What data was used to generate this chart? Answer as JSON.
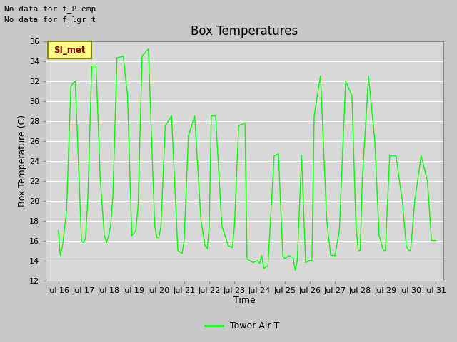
{
  "title": "Box Temperatures",
  "xlabel": "Time",
  "ylabel": "Box Temperature (C)",
  "ylim": [
    12,
    36
  ],
  "yticks": [
    12,
    14,
    16,
    18,
    20,
    22,
    24,
    26,
    28,
    30,
    32,
    34,
    36
  ],
  "line_color": "#00ff00",
  "legend_label": "Tower Air T",
  "annotation_texts": [
    "No data for f_PTemp",
    "No data for f_lgr_t"
  ],
  "si_met_label": "SI_met",
  "x_tick_labels": [
    "Jul 16",
    "Jul 17",
    "Jul 18",
    "Jul 19",
    "Jul 20",
    "Jul 21",
    "Jul 22",
    "Jul 23",
    "Jul 24",
    "Jul 25",
    "Jul 26",
    "Jul 27",
    "Jul 28",
    "Jul 29",
    "Jul 30",
    "Jul 31"
  ],
  "x_values": [
    16.0,
    16.08,
    16.17,
    16.33,
    16.5,
    16.67,
    16.83,
    16.92,
    17.0,
    17.08,
    17.17,
    17.33,
    17.5,
    17.67,
    17.83,
    17.92,
    18.0,
    18.08,
    18.17,
    18.33,
    18.58,
    18.75,
    18.92,
    19.0,
    19.08,
    19.17,
    19.33,
    19.58,
    19.83,
    19.92,
    20.0,
    20.08,
    20.25,
    20.5,
    20.75,
    20.92,
    21.0,
    21.17,
    21.42,
    21.67,
    21.83,
    21.92,
    22.0,
    22.08,
    22.25,
    22.5,
    22.75,
    22.92,
    23.0,
    23.17,
    23.42,
    23.5,
    23.58,
    23.75,
    23.92,
    24.0,
    24.08,
    24.17,
    24.33,
    24.58,
    24.75,
    24.92,
    25.0,
    25.17,
    25.33,
    25.42,
    25.5,
    25.67,
    25.83,
    26.0,
    26.08,
    26.17,
    26.42,
    26.67,
    26.83,
    27.0,
    27.17,
    27.42,
    27.67,
    27.83,
    27.92,
    28.0,
    28.08,
    28.33,
    28.58,
    28.75,
    28.92,
    29.0,
    29.17,
    29.42,
    29.67,
    29.83,
    29.92,
    30.0,
    30.17,
    30.42,
    30.67,
    30.83,
    30.92,
    31.0
  ],
  "y_values": [
    17.0,
    14.5,
    15.5,
    19.0,
    31.5,
    32.0,
    22.0,
    16.0,
    15.8,
    16.2,
    20.0,
    33.5,
    33.5,
    22.0,
    16.5,
    15.8,
    16.5,
    17.5,
    20.5,
    34.3,
    34.5,
    30.5,
    16.5,
    16.7,
    17.0,
    19.5,
    34.5,
    35.2,
    17.5,
    16.3,
    16.3,
    17.5,
    27.5,
    28.5,
    15.0,
    14.7,
    16.0,
    26.5,
    28.5,
    18.0,
    15.5,
    15.2,
    17.5,
    28.5,
    28.5,
    17.5,
    15.5,
    15.3,
    17.5,
    27.5,
    27.8,
    14.2,
    14.0,
    13.8,
    14.0,
    13.7,
    14.5,
    13.2,
    13.5,
    24.5,
    24.7,
    14.5,
    14.2,
    14.5,
    14.3,
    13.0,
    14.0,
    24.5,
    13.8,
    14.0,
    14.0,
    28.5,
    32.5,
    18.0,
    14.5,
    14.5,
    17.0,
    32.0,
    30.5,
    17.5,
    15.0,
    15.0,
    22.0,
    32.5,
    26.0,
    16.5,
    15.0,
    15.0,
    24.5,
    24.5,
    20.0,
    15.5,
    15.0,
    15.0,
    20.0,
    24.5,
    22.0,
    16.0,
    16.0,
    16.0
  ],
  "fig_facecolor": "#c8c8c8",
  "ax_facecolor": "#d8d8d8",
  "grid_color": "#ffffff",
  "spine_color": "#888888",
  "title_fontsize": 12,
  "label_fontsize": 9,
  "tick_fontsize": 8
}
